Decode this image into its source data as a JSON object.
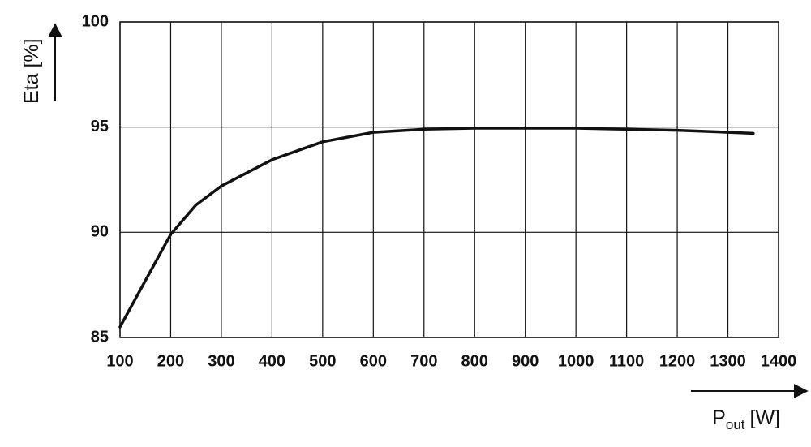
{
  "chart_data": {
    "type": "line",
    "y_label": "Eta [%]",
    "x_label_main": "P",
    "x_label_sub": "out",
    "x_label_unit": "[W]",
    "x": [
      100,
      150,
      200,
      250,
      300,
      400,
      500,
      600,
      700,
      800,
      900,
      1000,
      1100,
      1200,
      1300,
      1350
    ],
    "series": [
      {
        "color": "#111111",
        "values": [
          85.5,
          87.7,
          89.9,
          91.3,
          92.2,
          93.45,
          94.3,
          94.75,
          94.9,
          94.95,
          94.95,
          94.95,
          94.9,
          94.85,
          94.75,
          94.7
        ]
      }
    ],
    "xlim": [
      100,
      1400
    ],
    "ylim": [
      85,
      100
    ],
    "xticks": [
      100,
      200,
      300,
      400,
      500,
      600,
      700,
      800,
      900,
      1000,
      1100,
      1200,
      1300,
      1400
    ],
    "yticks": [
      85,
      90,
      95,
      100
    ],
    "grid": true
  }
}
